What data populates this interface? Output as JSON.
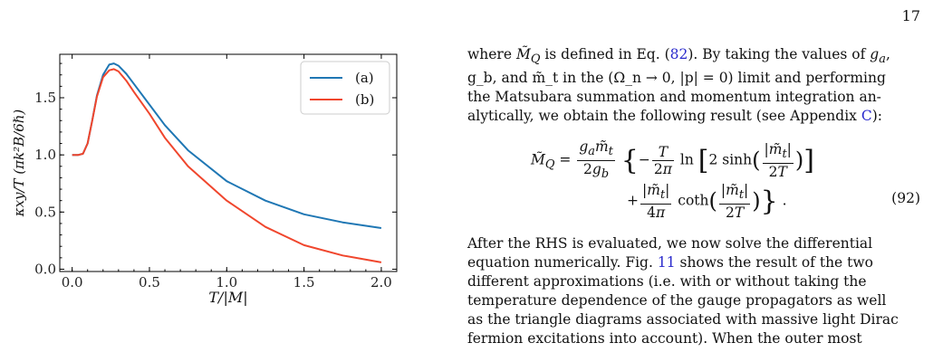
{
  "page_number": "17",
  "figure": {
    "chart_data": {
      "type": "line",
      "xlabel": "T/|M|",
      "ylabel": "κxy/T (πk²B/6ℏ)",
      "xlim": [
        -0.08,
        2.1
      ],
      "ylim": [
        -0.02,
        1.88
      ],
      "x_ticks": [
        0.0,
        0.5,
        1.0,
        1.5,
        2.0
      ],
      "x_tick_labels": [
        "0.0",
        "0.5",
        "1.0",
        "1.5",
        "2.0"
      ],
      "y_ticks": [
        0.0,
        0.5,
        1.0,
        1.5
      ],
      "y_tick_labels": [
        "0.0",
        "0.5",
        "1.0",
        "1.5"
      ],
      "legend_position": "top-right",
      "grid": false,
      "x": [
        0.0,
        0.04,
        0.07,
        0.1,
        0.13,
        0.16,
        0.2,
        0.24,
        0.27,
        0.3,
        0.35,
        0.4,
        0.5,
        0.6,
        0.75,
        1.0,
        1.25,
        1.5,
        1.75,
        2.0
      ],
      "series": [
        {
          "name": "(a)",
          "color": "#1f77b4",
          "values": [
            1.0,
            1.0,
            1.01,
            1.1,
            1.3,
            1.52,
            1.7,
            1.79,
            1.8,
            1.78,
            1.71,
            1.62,
            1.44,
            1.26,
            1.04,
            0.77,
            0.6,
            0.48,
            0.41,
            0.36
          ]
        },
        {
          "name": "(b)",
          "color": "#f0462d",
          "values": [
            1.0,
            1.0,
            1.01,
            1.1,
            1.3,
            1.51,
            1.68,
            1.74,
            1.75,
            1.73,
            1.65,
            1.55,
            1.36,
            1.15,
            0.9,
            0.6,
            0.37,
            0.21,
            0.12,
            0.06
          ]
        }
      ]
    }
  },
  "text": {
    "para1_a": "where ",
    "para1_MQ": "M̃",
    "para1_MQsub": "Q",
    "para1_b": " is defined in Eq. (",
    "para1_ref": "82",
    "para1_c": "). By taking the values of ",
    "para1_ga": "g",
    "para1_ga_sub": "a",
    "para1_d": ",",
    "para1_line2": "g_b, and m̃_t in the (Ω_n → 0, |p| = 0) limit and performing",
    "para1_line3": "the Matsubara summation and momentum integration an-",
    "para1_line4a": "alytically, we obtain the following result (see Appendix ",
    "para1_appendix": "C",
    "para1_line4b": "):",
    "eq_number": "(92)",
    "para2_line1": "After the RHS is evaluated, we now solve the differential",
    "para2_line2a": "equation numerically. Fig. ",
    "para2_fig": "11",
    "para2_line2b": " shows the result of the two",
    "para2_line3": "different approximations (i.e. with or without taking the",
    "para2_line4": "temperature dependence of the gauge propagators as well",
    "para2_line5": "as the triangle diagrams associated with massive light Dirac",
    "para2_line6": "fermion excitations into account). When the outer most"
  }
}
